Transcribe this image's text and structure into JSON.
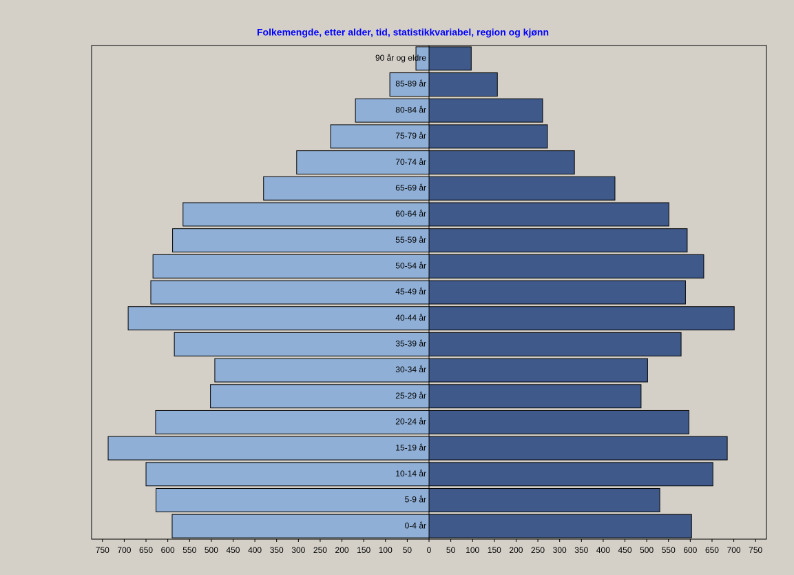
{
  "chart_data": {
    "type": "bar",
    "title": "Folkemengde, etter alder, tid, statistikkvariabel, region og kjønn",
    "categories": [
      "0-4 år",
      "5-9 år",
      "10-14 år",
      "15-19 år",
      "20-24 år",
      "25-29 år",
      "30-34 år",
      "35-39 år",
      "40-44 år",
      "45-49 år",
      "50-54 år",
      "55-59 år",
      "60-64 år",
      "65-69 år",
      "70-74 år",
      "75-79 år",
      "80-84 år",
      "85-89 år",
      "90 år og eldre"
    ],
    "series": [
      {
        "color": "#8fafd6",
        "values": [
          -590,
          -627,
          -650,
          -737,
          -628,
          -502,
          -492,
          -585,
          -691,
          -639,
          -634,
          -589,
          -565,
          -380,
          -304,
          -226,
          -169,
          -90,
          -30
        ]
      },
      {
        "color": "#3f5a8a",
        "values": [
          603,
          530,
          652,
          685,
          597,
          487,
          502,
          579,
          701,
          589,
          631,
          593,
          551,
          427,
          334,
          272,
          261,
          157,
          97
        ]
      }
    ],
    "xlim": [
      -775,
      775
    ],
    "xticks": [
      {
        "value": -750,
        "label": "750"
      },
      {
        "value": -700,
        "label": "700"
      },
      {
        "value": -650,
        "label": "650"
      },
      {
        "value": -600,
        "label": "600"
      },
      {
        "value": -550,
        "label": "550"
      },
      {
        "value": -500,
        "label": "500"
      },
      {
        "value": -450,
        "label": "450"
      },
      {
        "value": -400,
        "label": "400"
      },
      {
        "value": -350,
        "label": "350"
      },
      {
        "value": -300,
        "label": "300"
      },
      {
        "value": -250,
        "label": "250"
      },
      {
        "value": -200,
        "label": "200"
      },
      {
        "value": -150,
        "label": "150"
      },
      {
        "value": -100,
        "label": "100"
      },
      {
        "value": -50,
        "label": "50"
      },
      0,
      50,
      100,
      150,
      200,
      250,
      300,
      350,
      400,
      450,
      500,
      550,
      600,
      650,
      700,
      750
    ]
  }
}
